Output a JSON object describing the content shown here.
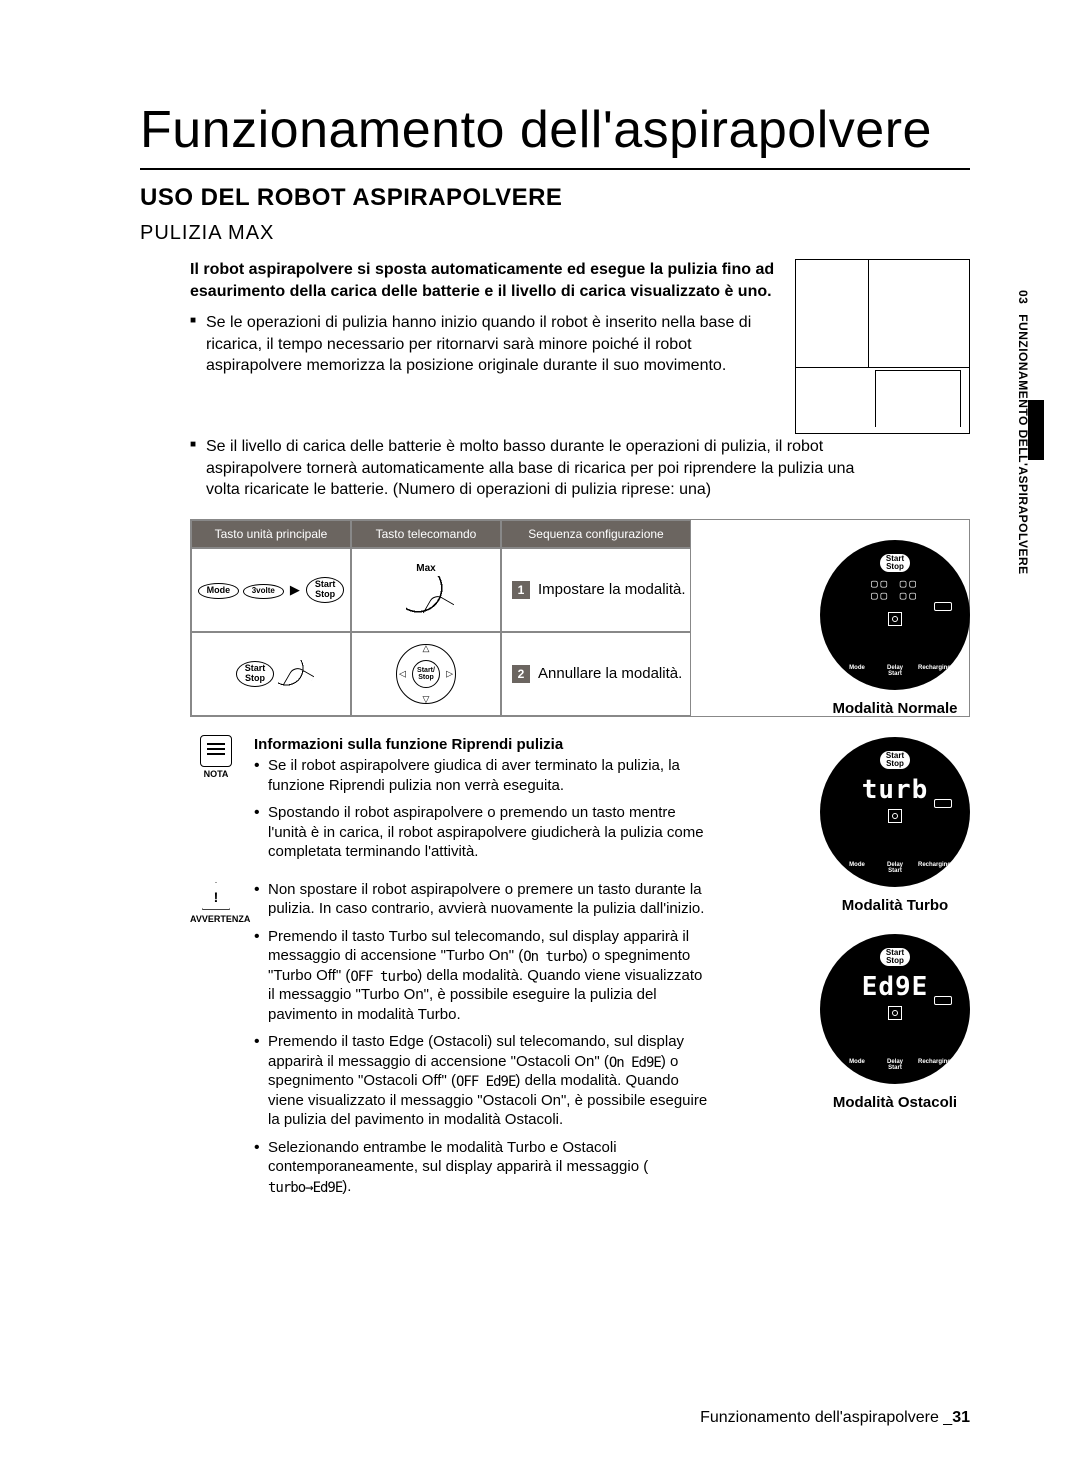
{
  "title": "Funzionamento dell'aspirapolvere",
  "section": "USO DEL ROBOT ASPIRAPOLVERE",
  "subsection": "PULIZIA MAX",
  "side_tab": {
    "num": "03",
    "text": "FUNZIONAMENTO DELL'ASPIRAPOLVERE"
  },
  "intro_bold": "Il robot aspirapolvere si sposta automaticamente ed esegue la pulizia fino ad esaurimento della carica delle batterie e il livello di carica visualizzato è uno.",
  "bullet1": "Se le operazioni di pulizia hanno inizio quando il robot è inserito nella base di ricarica, il tempo necessario per ritornarvi sarà minore poiché il robot aspirapolvere memorizza la posizione originale durante il suo movimento.",
  "bullet2": "Se il livello di carica delle batterie è molto basso durante le operazioni di pulizia, il robot aspirapolvere tornerà automaticamente alla base di ricarica per poi riprendere la pulizia una volta ricaricate le batterie. (Numero di operazioni di pulizia riprese: una)",
  "table": {
    "headers": [
      "Tasto unità principale",
      "Tasto telecomando",
      "Sequenza configurazione"
    ],
    "row1": {
      "main_btn1": "Mode",
      "main_btn2": "Start\nStop",
      "main_sub": "3volte",
      "remote_label": "Max",
      "step_num": "1",
      "step_text": "Impostare la modalità."
    },
    "row2": {
      "main_btn": "Start\nStop",
      "step_num": "2",
      "step_text": "Annullare la modalità."
    }
  },
  "displays": {
    "normal": {
      "screen_top": "▢▢ ▢▢",
      "screen_bot": "▢▢ ▢▢",
      "label": "Modalità Normale"
    },
    "turbo": {
      "screen": "turb",
      "label": "Modalità Turbo"
    },
    "edge": {
      "screen": "Ed9E",
      "label": "Modalità Ostacoli"
    },
    "ss": "Start\nStop",
    "bottom": [
      "Mode",
      "Delay\nStart",
      "Recharging"
    ]
  },
  "notes": {
    "nota_label": "NOTA",
    "avv_label": "AVVERTENZA",
    "nota_title": "Informazioni sulla funzione Riprendi pulizia",
    "nota_items": [
      "Se il robot aspirapolvere giudica di aver terminato la pulizia, la funzione Riprendi pulizia non verrà eseguita.",
      "Spostando il robot aspirapolvere o premendo un tasto mentre l'unità è in carica, il robot aspirapolvere giudicherà la pulizia come completata terminando l'attività."
    ],
    "avv_items": [
      "Non spostare il robot aspirapolvere o premere un tasto durante la pulizia. In caso contrario, avvierà nuovamente la pulizia dall'inizio.",
      "Premendo il tasto Turbo sul telecomando, sul display apparirà il messaggio di accensione \"Turbo On\" (<lcd>On turbo</lcd>) o spegnimento \"Turbo Off\" (<lcd>OFF turbo</lcd>) della modalità. Quando viene visualizzato il messaggio \"Turbo On\", è possibile eseguire la pulizia del pavimento in modalità Turbo.",
      "Premendo il tasto Edge (Ostacoli) sul telecomando, sul display apparirà il messaggio di accensione \"Ostacoli On\" (<lcd>On Ed9E</lcd>) o spegnimento \"Ostacoli Off\" (<lcd>OFF Ed9E</lcd>) della modalità. Quando viene visualizzato il messaggio \"Ostacoli On\", è possibile eseguire la pulizia del pavimento in modalità Ostacoli.",
      "Selezionando entrambe le modalità Turbo e Ostacoli contemporaneamente, sul display apparirà il messaggio (<lcd>turbo→Ed9E</lcd>)."
    ]
  },
  "footer": {
    "text": "Funzionamento dell'aspirapolvere _",
    "page": "31"
  }
}
